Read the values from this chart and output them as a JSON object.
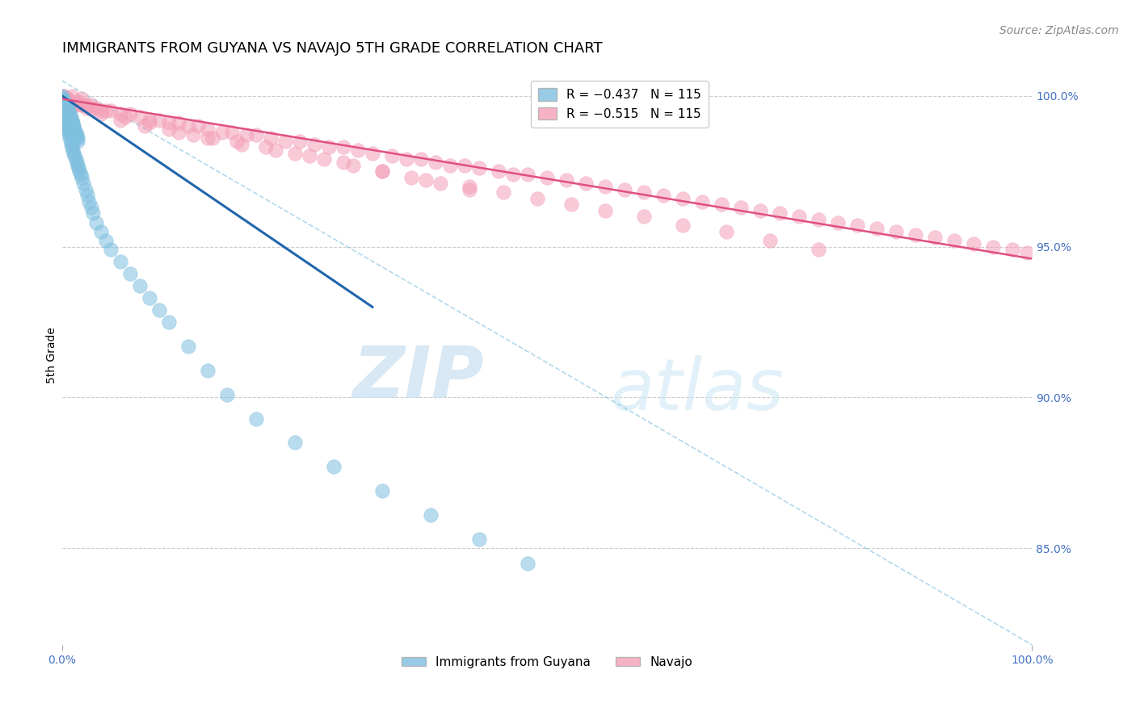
{
  "title": "IMMIGRANTS FROM GUYANA VS NAVAJO 5TH GRADE CORRELATION CHART",
  "source": "Source: ZipAtlas.com",
  "ylabel": "5th Grade",
  "x_tick_labels": [
    "0.0%",
    "100.0%"
  ],
  "legend_labels": [
    "Immigrants from Guyana",
    "Navajo"
  ],
  "legend_r_blue": "R = −0.437",
  "legend_n_blue": "N = 115",
  "legend_r_pink": "R = −0.515",
  "legend_n_pink": "N = 115",
  "blue_color": "#7fbfdf",
  "pink_color": "#f4a0b8",
  "blue_line_color": "#2166ac",
  "pink_line_color": "#e05080",
  "right_ytick_labels": [
    "100.0%",
    "95.0%",
    "90.0%",
    "85.0%"
  ],
  "right_ytick_values": [
    1.0,
    0.95,
    0.9,
    0.85
  ],
  "watermark_zip": "ZIP",
  "watermark_atlas": "atlas",
  "blue_scatter_x": [
    0.0002,
    0.0003,
    0.0004,
    0.0005,
    0.0006,
    0.0007,
    0.0008,
    0.0009,
    0.001,
    0.0012,
    0.0015,
    0.0018,
    0.002,
    0.0022,
    0.0025,
    0.003,
    0.003,
    0.0032,
    0.0035,
    0.004,
    0.004,
    0.0042,
    0.0045,
    0.005,
    0.005,
    0.0055,
    0.006,
    0.006,
    0.0065,
    0.007,
    0.007,
    0.0075,
    0.008,
    0.008,
    0.009,
    0.009,
    0.01,
    0.01,
    0.011,
    0.011,
    0.012,
    0.012,
    0.013,
    0.013,
    0.014,
    0.014,
    0.015,
    0.015,
    0.016,
    0.016,
    0.0002,
    0.0003,
    0.0004,
    0.0005,
    0.0006,
    0.0007,
    0.0008,
    0.001,
    0.001,
    0.0015,
    0.002,
    0.002,
    0.0025,
    0.003,
    0.003,
    0.0035,
    0.004,
    0.004,
    0.005,
    0.005,
    0.006,
    0.006,
    0.007,
    0.007,
    0.008,
    0.008,
    0.009,
    0.009,
    0.01,
    0.011,
    0.012,
    0.013,
    0.014,
    0.015,
    0.016,
    0.017,
    0.018,
    0.019,
    0.02,
    0.022,
    0.024,
    0.026,
    0.028,
    0.03,
    0.032,
    0.035,
    0.04,
    0.045,
    0.05,
    0.06,
    0.07,
    0.08,
    0.09,
    0.1,
    0.11,
    0.13,
    0.15,
    0.17,
    0.2,
    0.24,
    0.28,
    0.33,
    0.38,
    0.43,
    0.48
  ],
  "blue_scatter_y": [
    1.0,
    0.999,
    0.998,
    0.997,
    0.999,
    0.998,
    0.997,
    0.996,
    0.998,
    0.997,
    0.996,
    0.995,
    0.997,
    0.996,
    0.995,
    0.998,
    0.997,
    0.996,
    0.995,
    0.997,
    0.996,
    0.995,
    0.994,
    0.997,
    0.996,
    0.995,
    0.996,
    0.995,
    0.994,
    0.995,
    0.994,
    0.993,
    0.994,
    0.993,
    0.993,
    0.992,
    0.992,
    0.991,
    0.991,
    0.99,
    0.99,
    0.989,
    0.989,
    0.988,
    0.988,
    0.987,
    0.987,
    0.986,
    0.986,
    0.985,
    0.999,
    0.998,
    0.997,
    0.996,
    0.995,
    0.994,
    0.993,
    0.996,
    0.995,
    0.994,
    0.995,
    0.994,
    0.993,
    0.994,
    0.993,
    0.992,
    0.993,
    0.992,
    0.991,
    0.99,
    0.99,
    0.989,
    0.989,
    0.988,
    0.987,
    0.986,
    0.985,
    0.984,
    0.983,
    0.982,
    0.981,
    0.98,
    0.979,
    0.978,
    0.977,
    0.976,
    0.975,
    0.974,
    0.973,
    0.971,
    0.969,
    0.967,
    0.965,
    0.963,
    0.961,
    0.958,
    0.955,
    0.952,
    0.949,
    0.945,
    0.941,
    0.937,
    0.933,
    0.929,
    0.925,
    0.917,
    0.909,
    0.901,
    0.893,
    0.885,
    0.877,
    0.869,
    0.861,
    0.853,
    0.845
  ],
  "pink_scatter_x": [
    0.001,
    0.002,
    0.003,
    0.005,
    0.007,
    0.01,
    0.012,
    0.015,
    0.018,
    0.02,
    0.025,
    0.03,
    0.035,
    0.04,
    0.05,
    0.06,
    0.07,
    0.08,
    0.09,
    0.1,
    0.11,
    0.12,
    0.13,
    0.14,
    0.15,
    0.165,
    0.175,
    0.19,
    0.2,
    0.215,
    0.23,
    0.245,
    0.26,
    0.275,
    0.29,
    0.305,
    0.32,
    0.34,
    0.355,
    0.37,
    0.385,
    0.4,
    0.415,
    0.43,
    0.45,
    0.465,
    0.48,
    0.5,
    0.52,
    0.54,
    0.56,
    0.58,
    0.6,
    0.62,
    0.64,
    0.66,
    0.68,
    0.7,
    0.72,
    0.74,
    0.76,
    0.78,
    0.8,
    0.82,
    0.84,
    0.86,
    0.88,
    0.9,
    0.92,
    0.94,
    0.96,
    0.98,
    0.995,
    0.005,
    0.015,
    0.025,
    0.04,
    0.06,
    0.085,
    0.11,
    0.135,
    0.155,
    0.18,
    0.21,
    0.24,
    0.27,
    0.3,
    0.33,
    0.36,
    0.39,
    0.42,
    0.455,
    0.49,
    0.525,
    0.56,
    0.6,
    0.64,
    0.685,
    0.73,
    0.78,
    0.01,
    0.02,
    0.03,
    0.045,
    0.065,
    0.09,
    0.12,
    0.15,
    0.185,
    0.22,
    0.255,
    0.29,
    0.33,
    0.375,
    0.42
  ],
  "pink_scatter_y": [
    1.0,
    1.0,
    0.999,
    0.999,
    0.998,
    0.998,
    0.997,
    0.997,
    0.998,
    0.997,
    0.997,
    0.996,
    0.996,
    0.995,
    0.995,
    0.994,
    0.994,
    0.993,
    0.992,
    0.992,
    0.991,
    0.991,
    0.99,
    0.99,
    0.989,
    0.988,
    0.988,
    0.987,
    0.987,
    0.986,
    0.985,
    0.985,
    0.984,
    0.983,
    0.983,
    0.982,
    0.981,
    0.98,
    0.979,
    0.979,
    0.978,
    0.977,
    0.977,
    0.976,
    0.975,
    0.974,
    0.974,
    0.973,
    0.972,
    0.971,
    0.97,
    0.969,
    0.968,
    0.967,
    0.966,
    0.965,
    0.964,
    0.963,
    0.962,
    0.961,
    0.96,
    0.959,
    0.958,
    0.957,
    0.956,
    0.955,
    0.954,
    0.953,
    0.952,
    0.951,
    0.95,
    0.949,
    0.948,
    0.999,
    0.998,
    0.996,
    0.994,
    0.992,
    0.99,
    0.989,
    0.987,
    0.986,
    0.985,
    0.983,
    0.981,
    0.979,
    0.977,
    0.975,
    0.973,
    0.971,
    0.97,
    0.968,
    0.966,
    0.964,
    0.962,
    0.96,
    0.957,
    0.955,
    0.952,
    0.949,
    1.0,
    0.999,
    0.997,
    0.995,
    0.993,
    0.991,
    0.988,
    0.986,
    0.984,
    0.982,
    0.98,
    0.978,
    0.975,
    0.972,
    0.969
  ],
  "blue_line_x": [
    0.0,
    0.32
  ],
  "blue_line_y": [
    1.0,
    0.93
  ],
  "pink_line_x": [
    0.0,
    1.0
  ],
  "pink_line_y": [
    0.999,
    0.946
  ],
  "diag_line_x": [
    0.0,
    1.0
  ],
  "diag_line_y": [
    1.005,
    0.818
  ],
  "xlim": [
    0.0,
    1.0
  ],
  "ylim": [
    0.818,
    1.01
  ],
  "title_fontsize": 13,
  "source_fontsize": 10,
  "axis_label_fontsize": 10,
  "tick_fontsize": 10,
  "legend_fontsize": 11,
  "right_axis_color": "#4472c4",
  "bottom_axis_color": "#4472c4"
}
